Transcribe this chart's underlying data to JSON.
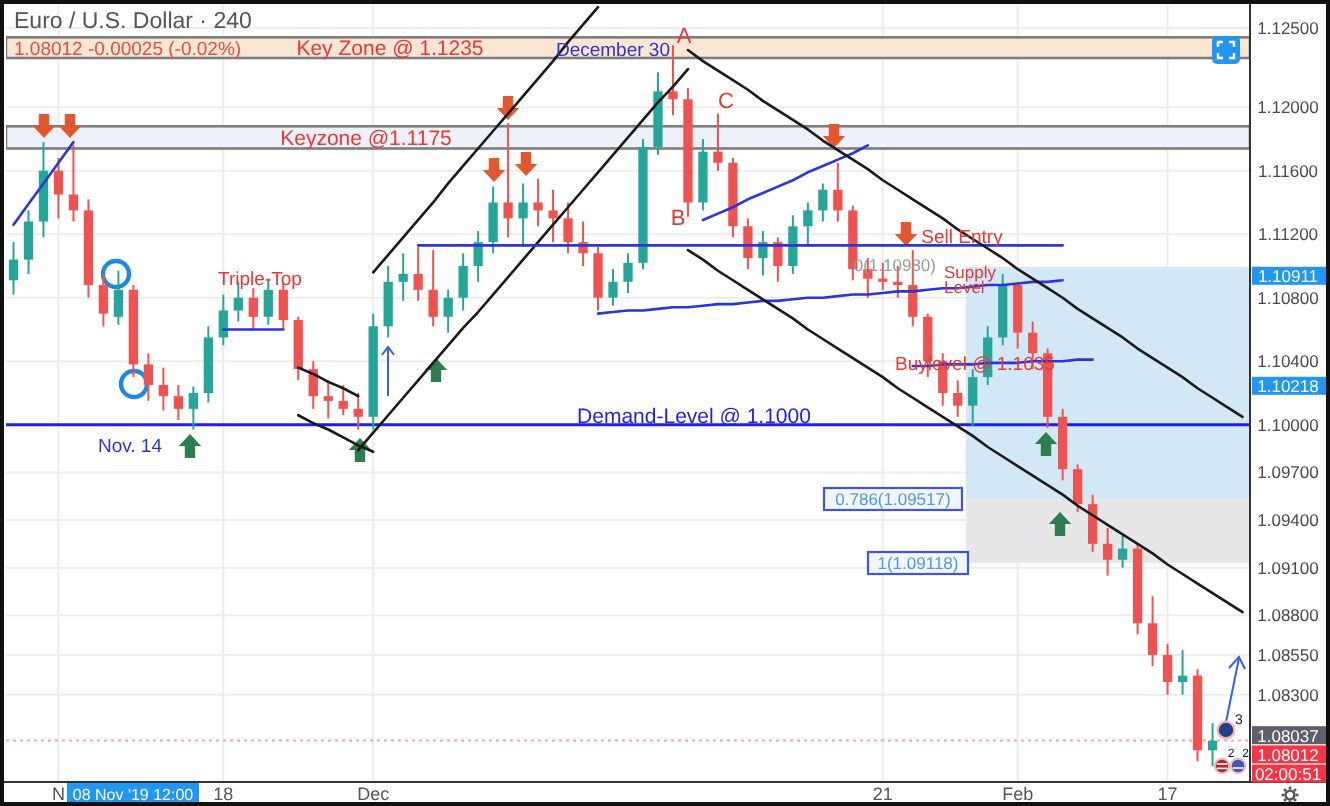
{
  "chart_data": {
    "type": "candlestick",
    "title": "Euro / U.S. Dollar · 240",
    "subtitle": "1.08012 -0.00025 (-0.02%)",
    "categories": [
      null,
      null,
      null,
      "N",
      null,
      null,
      null,
      null,
      null,
      null,
      null,
      null,
      null,
      null,
      "18",
      null,
      null,
      null,
      null,
      null,
      null,
      null,
      null,
      null,
      "Dec",
      null,
      null,
      null,
      null,
      null,
      null,
      null,
      null,
      null,
      null,
      null,
      null,
      null,
      null,
      null,
      null,
      null,
      null,
      null,
      null,
      null,
      null,
      null,
      null,
      null,
      null,
      null,
      null,
      null,
      null,
      null,
      null,
      null,
      "21",
      null,
      null,
      null,
      null,
      null,
      null,
      null,
      null,
      "Feb",
      null,
      null,
      null,
      null,
      null,
      null,
      null,
      null,
      null,
      "17",
      null,
      null,
      null,
      null,
      null
    ],
    "ohlc": [
      [
        1.1091,
        1.1115,
        1.1082,
        1.1104
      ],
      [
        1.1104,
        1.1135,
        1.1095,
        1.1128
      ],
      [
        1.1128,
        1.1178,
        1.1118,
        1.116
      ],
      [
        1.116,
        1.1168,
        1.113,
        1.1145
      ],
      [
        1.1145,
        1.1176,
        1.1128,
        1.1135
      ],
      [
        1.1135,
        1.1142,
        1.108,
        1.1088
      ],
      [
        1.1088,
        1.1095,
        1.1062,
        1.107
      ],
      [
        1.1068,
        1.1097,
        1.1063,
        1.1085
      ],
      [
        1.1085,
        1.1088,
        1.103,
        1.1038
      ],
      [
        1.1038,
        1.1045,
        1.1015,
        1.1025
      ],
      [
        1.1025,
        1.1036,
        1.1009,
        1.1018
      ],
      [
        1.1018,
        1.1025,
        1.1003,
        1.101
      ],
      [
        1.101,
        1.1024,
        1.0997,
        1.102
      ],
      [
        1.102,
        1.1062,
        1.1014,
        1.1055
      ],
      [
        1.1055,
        1.1082,
        1.105,
        1.1072
      ],
      [
        1.1072,
        1.109,
        1.1065,
        1.108
      ],
      [
        1.108,
        1.1086,
        1.106,
        1.1068
      ],
      [
        1.1068,
        1.1092,
        1.1063,
        1.1085
      ],
      [
        1.1085,
        1.109,
        1.106,
        1.1066
      ],
      [
        1.1066,
        1.1068,
        1.1028,
        1.1035
      ],
      [
        1.1035,
        1.104,
        1.101,
        1.1018
      ],
      [
        1.1018,
        1.1028,
        1.1004,
        1.1015
      ],
      [
        1.1015,
        1.1025,
        1.1006,
        1.101
      ],
      [
        1.101,
        1.102,
        1.0997,
        1.1005
      ],
      [
        1.1005,
        1.107,
        1.0997,
        1.1062
      ],
      [
        1.1062,
        1.11,
        1.1055,
        1.109
      ],
      [
        1.109,
        1.1108,
        1.1078,
        1.1095
      ],
      [
        1.1095,
        1.1112,
        1.1078,
        1.1085
      ],
      [
        1.1085,
        1.111,
        1.1062,
        1.1068
      ],
      [
        1.1068,
        1.1085,
        1.1058,
        1.108
      ],
      [
        1.108,
        1.1108,
        1.1072,
        1.11
      ],
      [
        1.11,
        1.1122,
        1.109,
        1.1115
      ],
      [
        1.1115,
        1.115,
        1.1108,
        1.114
      ],
      [
        1.114,
        1.119,
        1.1118,
        1.113
      ],
      [
        1.113,
        1.1152,
        1.1112,
        1.114
      ],
      [
        1.114,
        1.1155,
        1.1125,
        1.1135
      ],
      [
        1.1135,
        1.1148,
        1.1115,
        1.113
      ],
      [
        1.113,
        1.114,
        1.1108,
        1.1115
      ],
      [
        1.1115,
        1.1128,
        1.11,
        1.1108
      ],
      [
        1.1108,
        1.1112,
        1.1072,
        1.108
      ],
      [
        1.108,
        1.1098,
        1.1075,
        1.109
      ],
      [
        1.109,
        1.1108,
        1.1083,
        1.1102
      ],
      [
        1.1102,
        1.118,
        1.1098,
        1.1175
      ],
      [
        1.1175,
        1.1222,
        1.117,
        1.121
      ],
      [
        1.121,
        1.1239,
        1.1195,
        1.1205
      ],
      [
        1.1205,
        1.1212,
        1.1131,
        1.114
      ],
      [
        1.114,
        1.118,
        1.1135,
        1.1172
      ],
      [
        1.1172,
        1.1196,
        1.116,
        1.1165
      ],
      [
        1.1165,
        1.1168,
        1.1118,
        1.1125
      ],
      [
        1.1125,
        1.113,
        1.1098,
        1.1105
      ],
      [
        1.1105,
        1.1122,
        1.1094,
        1.1115
      ],
      [
        1.1115,
        1.1118,
        1.109,
        1.11
      ],
      [
        1.11,
        1.1132,
        1.1095,
        1.1125
      ],
      [
        1.1125,
        1.114,
        1.1112,
        1.1135
      ],
      [
        1.1135,
        1.1152,
        1.1128,
        1.1148
      ],
      [
        1.1148,
        1.1165,
        1.1128,
        1.1135
      ],
      [
        1.1135,
        1.1138,
        1.1091,
        1.1098
      ],
      [
        1.1098,
        1.1105,
        1.108,
        1.1092
      ],
      [
        1.1092,
        1.1102,
        1.1085,
        1.109
      ],
      [
        1.109,
        1.11,
        1.108,
        1.1088
      ],
      [
        1.1088,
        1.111,
        1.1062,
        1.1068
      ],
      [
        1.1068,
        1.107,
        1.103,
        1.104
      ],
      [
        1.104,
        1.1045,
        1.1012,
        1.102
      ],
      [
        1.102,
        1.1028,
        1.1005,
        1.1012
      ],
      [
        1.1012,
        1.1035,
        1.0999,
        1.103
      ],
      [
        1.103,
        1.1062,
        1.1025,
        1.1055
      ],
      [
        1.1055,
        1.1095,
        1.105,
        1.1088
      ],
      [
        1.1088,
        1.109,
        1.1048,
        1.1058
      ],
      [
        1.1058,
        1.1065,
        1.1035,
        1.1045
      ],
      [
        1.1045,
        1.1048,
        1.0998,
        1.1005
      ],
      [
        1.1005,
        1.101,
        1.0965,
        1.0972
      ],
      [
        1.0972,
        1.0975,
        1.0945,
        1.095
      ],
      [
        1.095,
        1.0956,
        1.092,
        1.0925
      ],
      [
        1.0925,
        1.0935,
        1.0905,
        1.0915
      ],
      [
        1.0915,
        1.093,
        1.091,
        1.0922
      ],
      [
        1.0922,
        1.0925,
        1.0868,
        1.0875
      ],
      [
        1.0875,
        1.0892,
        1.0848,
        1.0855
      ],
      [
        1.0855,
        1.0862,
        1.083,
        1.0838
      ],
      [
        1.0838,
        1.0858,
        1.083,
        1.0842
      ],
      [
        1.0842,
        1.0846,
        1.0788,
        1.0795
      ],
      [
        1.0795,
        1.0812,
        1.0785,
        1.0801
      ],
      null,
      null
    ],
    "series": [
      {
        "type": "line",
        "color": "#2d35d8",
        "values": [
          1.1126,
          1.1139,
          1.1152,
          1.1165,
          1.1178,
          null,
          null,
          null,
          null,
          null,
          null,
          null,
          null,
          null,
          null,
          null,
          null,
          null,
          null,
          null,
          null,
          null,
          null,
          null,
          null,
          null,
          null,
          null,
          null,
          null,
          null,
          null,
          null,
          null,
          null,
          null,
          null,
          null,
          null,
          null,
          null,
          null,
          null,
          null,
          null,
          null,
          null,
          null,
          null,
          null,
          null,
          null,
          null,
          null,
          null,
          null,
          null,
          null,
          null,
          null,
          null,
          null,
          null,
          null,
          null,
          null,
          null,
          null,
          null,
          null,
          null,
          null,
          null,
          null,
          null,
          null,
          null,
          null,
          null,
          null,
          null,
          null,
          null
        ]
      },
      {
        "type": "line",
        "color": "#1a1a1a",
        "values": [
          null,
          null,
          null,
          null,
          null,
          null,
          null,
          null,
          null,
          null,
          null,
          null,
          null,
          null,
          null,
          null,
          null,
          null,
          null,
          null,
          null,
          null,
          null,
          null,
          1.1096,
          1.1107,
          1.1118,
          1.1129,
          1.114,
          1.1152,
          1.1163,
          1.1174,
          1.1185,
          1.1196,
          1.1207,
          1.1218,
          1.1229,
          1.1241,
          1.1252,
          1.1263,
          null,
          null,
          null,
          null,
          null,
          null,
          null,
          null,
          null,
          null,
          null,
          null,
          null,
          null,
          null,
          null,
          null,
          null,
          null,
          null,
          null,
          null,
          null,
          null,
          null,
          null,
          null,
          null,
          null,
          null,
          null,
          null,
          null,
          null,
          null,
          null,
          null,
          null,
          null,
          null,
          null,
          null,
          null
        ]
      },
      {
        "type": "line",
        "color": "#1a1a1a",
        "values": [
          null,
          null,
          null,
          null,
          null,
          null,
          null,
          null,
          null,
          null,
          null,
          null,
          null,
          null,
          null,
          null,
          null,
          null,
          null,
          null,
          null,
          null,
          null,
          1.0984,
          1.0995,
          1.1006,
          1.1017,
          1.1028,
          1.1039,
          1.105,
          1.1061,
          1.1071,
          1.1082,
          1.1093,
          1.1104,
          1.1115,
          1.1126,
          1.1137,
          1.1148,
          1.1159,
          1.117,
          1.1181,
          1.1192,
          1.1203,
          1.1213,
          1.1224,
          null,
          null,
          null,
          null,
          null,
          null,
          null,
          null,
          null,
          null,
          null,
          null,
          null,
          null,
          null,
          null,
          null,
          null,
          null,
          null,
          null,
          null,
          null,
          null,
          null,
          null,
          null,
          null,
          null,
          null,
          null,
          null,
          null,
          null,
          null,
          null,
          null
        ]
      },
      {
        "type": "line",
        "color": "#1a1a1a",
        "values": [
          null,
          null,
          null,
          null,
          null,
          null,
          null,
          null,
          null,
          null,
          null,
          null,
          null,
          null,
          null,
          null,
          null,
          null,
          null,
          1.1036,
          1.1032,
          1.1027,
          1.1023,
          1.1018,
          null,
          null,
          null,
          null,
          null,
          null,
          null,
          null,
          null,
          null,
          null,
          null,
          null,
          null,
          null,
          null,
          null,
          null,
          null,
          null,
          null,
          null,
          null,
          null,
          null,
          null,
          null,
          null,
          null,
          null,
          null,
          null,
          null,
          null,
          null,
          null,
          null,
          null,
          null,
          null,
          null,
          null,
          null,
          null,
          null,
          null,
          null,
          null,
          null,
          null,
          null,
          null,
          null,
          null,
          null,
          null,
          null,
          null,
          null
        ]
      },
      {
        "type": "line",
        "color": "#1a1a1a",
        "values": [
          null,
          null,
          null,
          null,
          null,
          null,
          null,
          null,
          null,
          null,
          null,
          null,
          null,
          null,
          null,
          null,
          null,
          null,
          null,
          1.1006,
          1.1001,
          1.0997,
          1.0992,
          1.0987,
          1.0983,
          null,
          null,
          null,
          null,
          null,
          null,
          null,
          null,
          null,
          null,
          null,
          null,
          null,
          null,
          null,
          null,
          null,
          null,
          null,
          null,
          null,
          null,
          null,
          null,
          null,
          null,
          null,
          null,
          null,
          null,
          null,
          null,
          null,
          null,
          null,
          null,
          null,
          null,
          null,
          null,
          null,
          null,
          null,
          null,
          null,
          null,
          null,
          null,
          null,
          null,
          null,
          null,
          null,
          null,
          null,
          null,
          null,
          null
        ]
      },
      {
        "type": "line",
        "color": "#2d35d8",
        "values": [
          null,
          null,
          null,
          null,
          null,
          null,
          null,
          null,
          null,
          null,
          null,
          null,
          null,
          null,
          1.106,
          1.106,
          1.106,
          1.106,
          1.106,
          null,
          null,
          null,
          null,
          null,
          null,
          null,
          null,
          null,
          null,
          null,
          null,
          null,
          null,
          null,
          null,
          null,
          null,
          null,
          null,
          null,
          null,
          null,
          null,
          null,
          null,
          null,
          null,
          null,
          null,
          null,
          null,
          null,
          null,
          null,
          null,
          null,
          null,
          null,
          null,
          null,
          null,
          null,
          null,
          null,
          null,
          null,
          null,
          null,
          null,
          null,
          null,
          null,
          null,
          null,
          null,
          null,
          null,
          null,
          null,
          null,
          null,
          null,
          null
        ]
      },
      {
        "type": "line",
        "color": "#2d35d8",
        "values": [
          null,
          null,
          null,
          null,
          null,
          null,
          null,
          null,
          null,
          null,
          null,
          null,
          null,
          null,
          null,
          null,
          null,
          null,
          null,
          null,
          null,
          null,
          null,
          null,
          null,
          null,
          null,
          1.1113,
          1.1113,
          1.1113,
          1.1113,
          1.1113,
          1.1113,
          1.1113,
          1.1113,
          1.1113,
          1.1113,
          1.1113,
          1.1113,
          1.1113,
          1.1113,
          1.1113,
          1.1113,
          1.1113,
          1.1113,
          1.1113,
          1.1113,
          1.1113,
          1.1113,
          1.1113,
          1.1113,
          1.1113,
          1.1113,
          1.1113,
          1.1113,
          1.1113,
          1.1113,
          1.1113,
          1.1113,
          1.1113,
          1.1113,
          1.1113,
          1.1113,
          1.1113,
          1.1113,
          1.1113,
          1.1113,
          1.1113,
          1.1113,
          1.1113,
          1.1113,
          null,
          null,
          null,
          null,
          null,
          null,
          null,
          null,
          null,
          null,
          null,
          null
        ]
      },
      {
        "type": "line",
        "color": "#2d35d8",
        "values": [
          null,
          null,
          null,
          null,
          null,
          null,
          null,
          null,
          null,
          null,
          null,
          null,
          null,
          null,
          null,
          null,
          null,
          null,
          null,
          null,
          null,
          null,
          null,
          null,
          null,
          null,
          null,
          null,
          null,
          null,
          null,
          null,
          null,
          null,
          null,
          null,
          null,
          null,
          null,
          null,
          null,
          null,
          null,
          null,
          null,
          null,
          1.1129,
          1.1133,
          1.1137,
          1.1142,
          1.1146,
          1.115,
          1.1154,
          1.1159,
          1.1163,
          1.1167,
          1.1171,
          1.1176,
          null,
          null,
          null,
          null,
          null,
          null,
          null,
          null,
          null,
          null,
          null,
          null,
          null,
          null,
          null,
          null,
          null,
          null,
          null,
          null,
          null,
          null,
          null,
          null,
          null
        ]
      },
      {
        "type": "line",
        "color": "#2d35d8",
        "values": [
          null,
          null,
          null,
          null,
          null,
          null,
          null,
          null,
          null,
          null,
          null,
          null,
          null,
          null,
          null,
          null,
          null,
          null,
          null,
          null,
          null,
          null,
          null,
          null,
          null,
          null,
          null,
          null,
          null,
          null,
          null,
          null,
          null,
          null,
          null,
          null,
          null,
          null,
          null,
          1.107,
          1.1071,
          1.1072,
          1.1072,
          1.1073,
          1.1074,
          1.1074,
          1.1075,
          1.1076,
          1.1076,
          1.1077,
          1.1078,
          1.1078,
          1.1079,
          1.108,
          1.108,
          1.1081,
          1.1082,
          1.1082,
          1.1083,
          1.1084,
          1.1084,
          1.1085,
          1.1086,
          1.1086,
          1.1087,
          1.1088,
          1.1088,
          1.1089,
          1.109,
          1.109,
          1.1091,
          null,
          null,
          null,
          null,
          null,
          null,
          null,
          null,
          null,
          null,
          null,
          null
        ]
      },
      {
        "type": "line",
        "color": "#1a1a1a",
        "values": [
          null,
          null,
          null,
          null,
          null,
          null,
          null,
          null,
          null,
          null,
          null,
          null,
          null,
          null,
          null,
          null,
          null,
          null,
          null,
          null,
          null,
          null,
          null,
          null,
          null,
          null,
          null,
          null,
          null,
          null,
          null,
          null,
          null,
          null,
          null,
          null,
          null,
          null,
          null,
          null,
          null,
          null,
          null,
          null,
          null,
          1.1236,
          1.1229,
          1.1223,
          1.1217,
          1.1211,
          1.1204,
          1.1198,
          1.1192,
          1.1186,
          1.1179,
          1.1173,
          1.1167,
          1.1161,
          1.1154,
          1.1148,
          1.1142,
          1.1136,
          1.113,
          1.1123,
          1.1117,
          1.1111,
          1.1105,
          1.1098,
          1.1092,
          1.1086,
          1.108,
          1.1073,
          1.1067,
          1.1061,
          1.1055,
          1.1048,
          1.1042,
          1.1036,
          1.103,
          1.1023,
          1.1017,
          1.1011,
          1.1005
        ]
      },
      {
        "type": "line",
        "color": "#1a1a1a",
        "values": [
          null,
          null,
          null,
          null,
          null,
          null,
          null,
          null,
          null,
          null,
          null,
          null,
          null,
          null,
          null,
          null,
          null,
          null,
          null,
          null,
          null,
          null,
          null,
          null,
          null,
          null,
          null,
          null,
          null,
          null,
          null,
          null,
          null,
          null,
          null,
          null,
          null,
          null,
          null,
          null,
          null,
          null,
          null,
          null,
          null,
          1.111,
          1.1104,
          1.1097,
          1.1091,
          1.1085,
          1.1079,
          1.1073,
          1.1067,
          1.106,
          1.1054,
          1.1048,
          1.1042,
          1.1036,
          1.103,
          1.1023,
          1.1017,
          1.1011,
          1.1005,
          1.0999,
          1.0993,
          1.0986,
          1.098,
          1.0974,
          1.0968,
          1.0962,
          1.0956,
          1.0949,
          1.0943,
          1.0937,
          1.0931,
          1.0925,
          1.0919,
          1.0912,
          1.0906,
          1.09,
          1.0894,
          1.0888,
          1.0882
        ]
      },
      {
        "type": "line",
        "color": "#2d35d8",
        "values": [
          null,
          null,
          null,
          null,
          null,
          null,
          null,
          null,
          null,
          null,
          null,
          null,
          null,
          null,
          null,
          null,
          null,
          null,
          null,
          null,
          null,
          null,
          null,
          null,
          null,
          null,
          null,
          null,
          null,
          null,
          null,
          null,
          null,
          null,
          null,
          null,
          null,
          null,
          null,
          null,
          null,
          null,
          null,
          null,
          null,
          null,
          null,
          null,
          null,
          null,
          null,
          null,
          null,
          null,
          null,
          null,
          null,
          null,
          null,
          null,
          1.1037,
          1.1037,
          1.1038,
          1.1038,
          1.1038,
          1.1039,
          1.1039,
          1.1039,
          1.104,
          1.104,
          1.104,
          1.1041,
          1.1041,
          null,
          null,
          null,
          null,
          null,
          null,
          null,
          null,
          null,
          null
        ]
      }
    ],
    "ylim": [
      1.0775,
      1.1265
    ],
    "yticks": [
      {
        "value": 1.125,
        "label": "1.12500"
      },
      {
        "value": 1.12,
        "label": "1.12000"
      },
      {
        "value": 1.116,
        "label": "1.11600"
      },
      {
        "value": 1.112,
        "label": "1.11200"
      },
      {
        "value": 1.108,
        "label": "1.10800"
      },
      {
        "value": 1.104,
        "label": "1.10400"
      },
      {
        "value": 1.1,
        "label": "1.10000"
      },
      {
        "value": 1.097,
        "label": "1.09700"
      },
      {
        "value": 1.094,
        "label": "1.09400"
      },
      {
        "value": 1.091,
        "label": "1.09100"
      },
      {
        "value": 1.088,
        "label": "1.08800"
      },
      {
        "value": 1.0855,
        "label": "1.08550"
      },
      {
        "value": 1.083,
        "label": "1.08300"
      }
    ],
    "grid": true,
    "bands": [
      {
        "axis": "y",
        "from": 1.1231,
        "to": 1.1244,
        "label": "Key Zone @ 1.1235",
        "color": "#fbe6d3"
      },
      {
        "axis": "y",
        "from": 1.1174,
        "to": 1.1188,
        "label": "Keyzone @1.1175",
        "color": "#eef0fa"
      }
    ],
    "ref_lines": [
      {
        "axis": "y",
        "value": 1.1,
        "label": "Demand-Level @ 1.1000",
        "color": "#1f1fe6"
      },
      {
        "axis": "y",
        "value": 1.08012,
        "label": "1.08012",
        "color": "#f5a3a3",
        "line_style": "dotted"
      }
    ],
    "annotations": [
      "December 30",
      {
        "text": "A",
        "y": 1.1239
      },
      {
        "text": "B",
        "y": 1.1131
      },
      {
        "text": "C",
        "y": 1.1196
      },
      {
        "text": "Nov. 14",
        "y": 1.0997
      },
      {
        "text": "Triple-Top",
        "y": 1.1092
      },
      {
        "text": "Sell Entry",
        "y": 1.1113
      },
      "0(1.10980)",
      "Supply Level",
      {
        "text": "Buylevel @ 1.1035",
        "y": 1.1039
      },
      "0.786(1.09517)",
      "1(1.09118)",
      "1.10911",
      "1.10218",
      "1.08037",
      "02:00:51",
      "08 Nov '19 12:00",
      "3",
      "2",
      "2"
    ]
  }
}
